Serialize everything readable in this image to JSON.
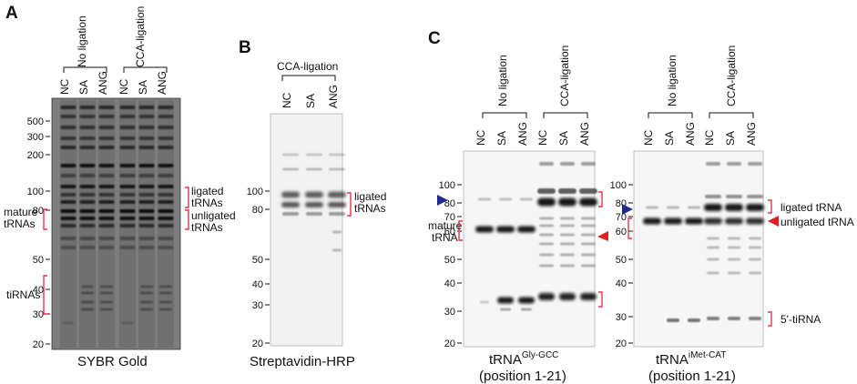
{
  "panel_a": {
    "letter": "A",
    "group_no_ligation": "No ligation",
    "group_cca_ligation": "CCA-ligation",
    "lanes": [
      "NC",
      "SA",
      "ANG",
      "NC",
      "SA",
      "ANG"
    ],
    "markers": [
      "500",
      "300",
      "200",
      "100",
      "80",
      "50",
      "40",
      "30",
      "20"
    ],
    "label_ligated": "ligated\ntRNAs",
    "label_unligated": "unligated\ntRNAs",
    "label_mature": "mature\ntRNAs",
    "label_tirnas": "tiRNAs",
    "stain": "SYBR Gold"
  },
  "panel_b": {
    "letter": "B",
    "group_cca_ligation": "CCA-ligation",
    "lanes": [
      "NC",
      "SA",
      "ANG"
    ],
    "markers": [
      "100",
      "80",
      "50",
      "40",
      "30",
      "20"
    ],
    "label_ligated": "ligated\ntRNAs",
    "caption": "Streptavidin-HRP"
  },
  "panel_c": {
    "letter": "C",
    "left_blot": {
      "group_no_ligation": "No ligation",
      "group_cca_ligation": "CCA-ligation",
      "lanes": [
        "NC",
        "SA",
        "ANG",
        "NC",
        "SA",
        "ANG"
      ],
      "markers": [
        "100",
        "80",
        "70",
        "60",
        "50",
        "40",
        "30",
        "20"
      ],
      "label_mature": "mature\ntRNA",
      "caption_base": "tRNA",
      "caption_sup": "Gly-GCC",
      "caption_position": "(position 1-21)"
    },
    "right_blot": {
      "group_no_ligation": "No ligation",
      "group_cca_ligation": "CCA-ligation",
      "lanes": [
        "NC",
        "SA",
        "ANG",
        "NC",
        "SA",
        "ANG"
      ],
      "markers": [
        "100",
        "80",
        "70",
        "60",
        "50",
        "40",
        "30",
        "20"
      ],
      "label_ligated": "ligated tRNA",
      "label_unligated": "unligated tRNA",
      "label_5tirna": "5'-tiRNA",
      "caption_base": "tRNA",
      "caption_sup": "iMet-CAT",
      "caption_position": "(position 1-21)"
    }
  },
  "colors": {
    "bracket": "#e8334a",
    "arrow_red": "#e31b23",
    "arrow_blue": "#1f2a8a"
  }
}
